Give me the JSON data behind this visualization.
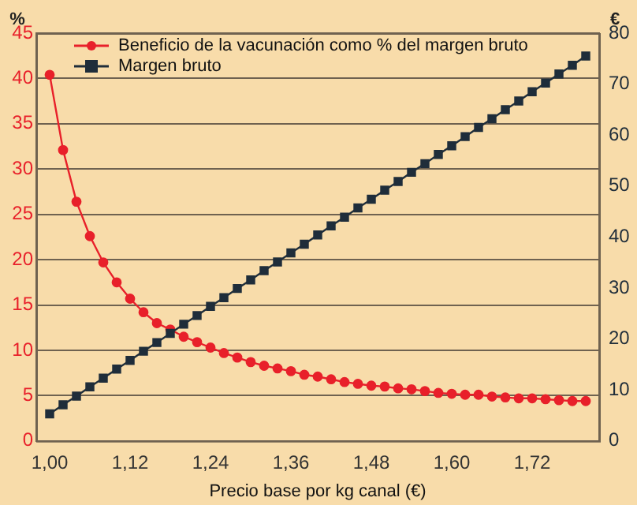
{
  "chart_data": {
    "type": "line",
    "xlabel": "Precio base por kg canal (€)",
    "ylabel": "%",
    "y2label": "€",
    "x": [
      1.0,
      1.02,
      1.04,
      1.06,
      1.08,
      1.1,
      1.12,
      1.14,
      1.16,
      1.18,
      1.2,
      1.22,
      1.24,
      1.26,
      1.28,
      1.3,
      1.32,
      1.34,
      1.36,
      1.38,
      1.4,
      1.42,
      1.44,
      1.46,
      1.48,
      1.5,
      1.52,
      1.54,
      1.56,
      1.58,
      1.6,
      1.62,
      1.64,
      1.66,
      1.68,
      1.7,
      1.72,
      1.74,
      1.76,
      1.78,
      1.8
    ],
    "series": [
      {
        "name": "Beneficio de la vacunación como % del margen bruto",
        "color": "#e8202a",
        "marker": "circle",
        "axis": "y",
        "values": [
          40.4,
          32.1,
          26.4,
          22.6,
          19.7,
          17.5,
          15.7,
          14.2,
          13.0,
          12.3,
          11.5,
          10.9,
          10.3,
          9.7,
          9.2,
          8.7,
          8.3,
          8.0,
          7.7,
          7.3,
          7.1,
          6.8,
          6.5,
          6.3,
          6.1,
          6.0,
          5.8,
          5.7,
          5.5,
          5.3,
          5.2,
          5.1,
          5.1,
          4.9,
          4.8,
          4.7,
          4.7,
          4.6,
          4.5,
          4.4,
          4.4
        ]
      },
      {
        "name": "Margen bruto",
        "color": "#1f2d3a",
        "marker": "square",
        "axis": "y2",
        "values": [
          5.3,
          7.1,
          8.8,
          10.6,
          12.3,
          14.1,
          15.8,
          17.6,
          19.3,
          21.1,
          22.9,
          24.6,
          26.4,
          28.1,
          29.9,
          31.6,
          33.4,
          35.1,
          36.9,
          38.6,
          40.4,
          42.2,
          43.9,
          45.7,
          47.4,
          49.2,
          50.9,
          52.7,
          54.4,
          56.2,
          57.9,
          59.7,
          61.5,
          63.2,
          65.0,
          66.7,
          68.5,
          70.2,
          72.0,
          73.7,
          75.5
        ]
      }
    ],
    "xlim": [
      0.98,
      1.82
    ],
    "xticks": [
      {
        "value": 1.0,
        "label": "1,00"
      },
      {
        "value": 1.12,
        "label": "1,12"
      },
      {
        "value": 1.24,
        "label": "1,24"
      },
      {
        "value": 1.36,
        "label": "1,36"
      },
      {
        "value": 1.48,
        "label": "1,48"
      },
      {
        "value": 1.6,
        "label": "1,60"
      },
      {
        "value": 1.72,
        "label": "1,72"
      }
    ],
    "ylim": [
      0,
      45
    ],
    "yticks": [
      0,
      5,
      10,
      15,
      20,
      25,
      30,
      35,
      40,
      45
    ],
    "y2lim": [
      0,
      80
    ],
    "y2ticks": [
      0,
      10,
      20,
      30,
      40,
      50,
      60,
      70,
      80
    ],
    "grid": "y",
    "legend": "top left",
    "line_style": "solid"
  }
}
